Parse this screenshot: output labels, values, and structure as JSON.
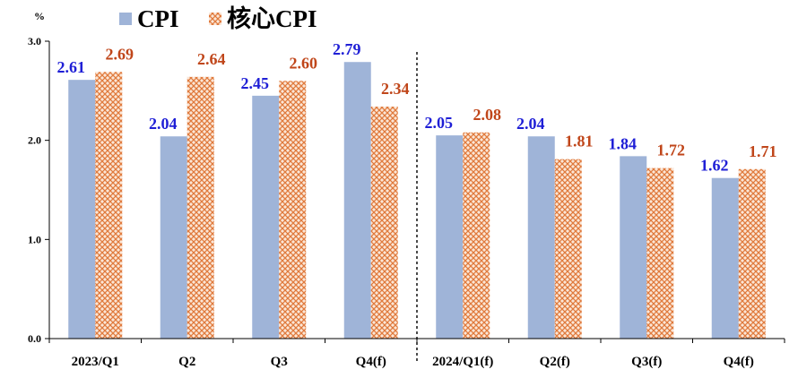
{
  "chart_data": {
    "type": "bar",
    "unit_label": "%",
    "categories": [
      "2023/Q1",
      "Q2",
      "Q3",
      "Q4(f)",
      "2024/Q1(f)",
      "Q2(f)",
      "Q3(f)",
      "Q4(f)"
    ],
    "series": [
      {
        "name": "CPI",
        "values": [
          2.61,
          2.04,
          2.45,
          2.79,
          2.05,
          2.04,
          1.84,
          1.62
        ],
        "color": "#9fb4d8",
        "label_color": "#1f1fd6"
      },
      {
        "name": "核心CPI",
        "values": [
          2.69,
          2.64,
          2.6,
          2.34,
          2.08,
          1.81,
          1.72,
          1.71
        ],
        "color": "#e8864a",
        "label_color": "#c0461a",
        "pattern": "crosshatch"
      }
    ],
    "value_labels": {
      "CPI": [
        "2.61",
        "2.04",
        "2.45",
        "2.79",
        "2.05",
        "2.04",
        "1.84",
        "1.62"
      ],
      "核心CPI": [
        "2.69",
        "2.64",
        "2.60",
        "2.34",
        "2.08",
        "1.81",
        "1.72",
        "1.71"
      ]
    },
    "y_ticks": [
      "0.0",
      "1.0",
      "2.0",
      "3.0"
    ],
    "ylim": [
      0,
      3.0
    ],
    "grid": false,
    "legend_position": "top-left",
    "divider_after_category": 3
  }
}
